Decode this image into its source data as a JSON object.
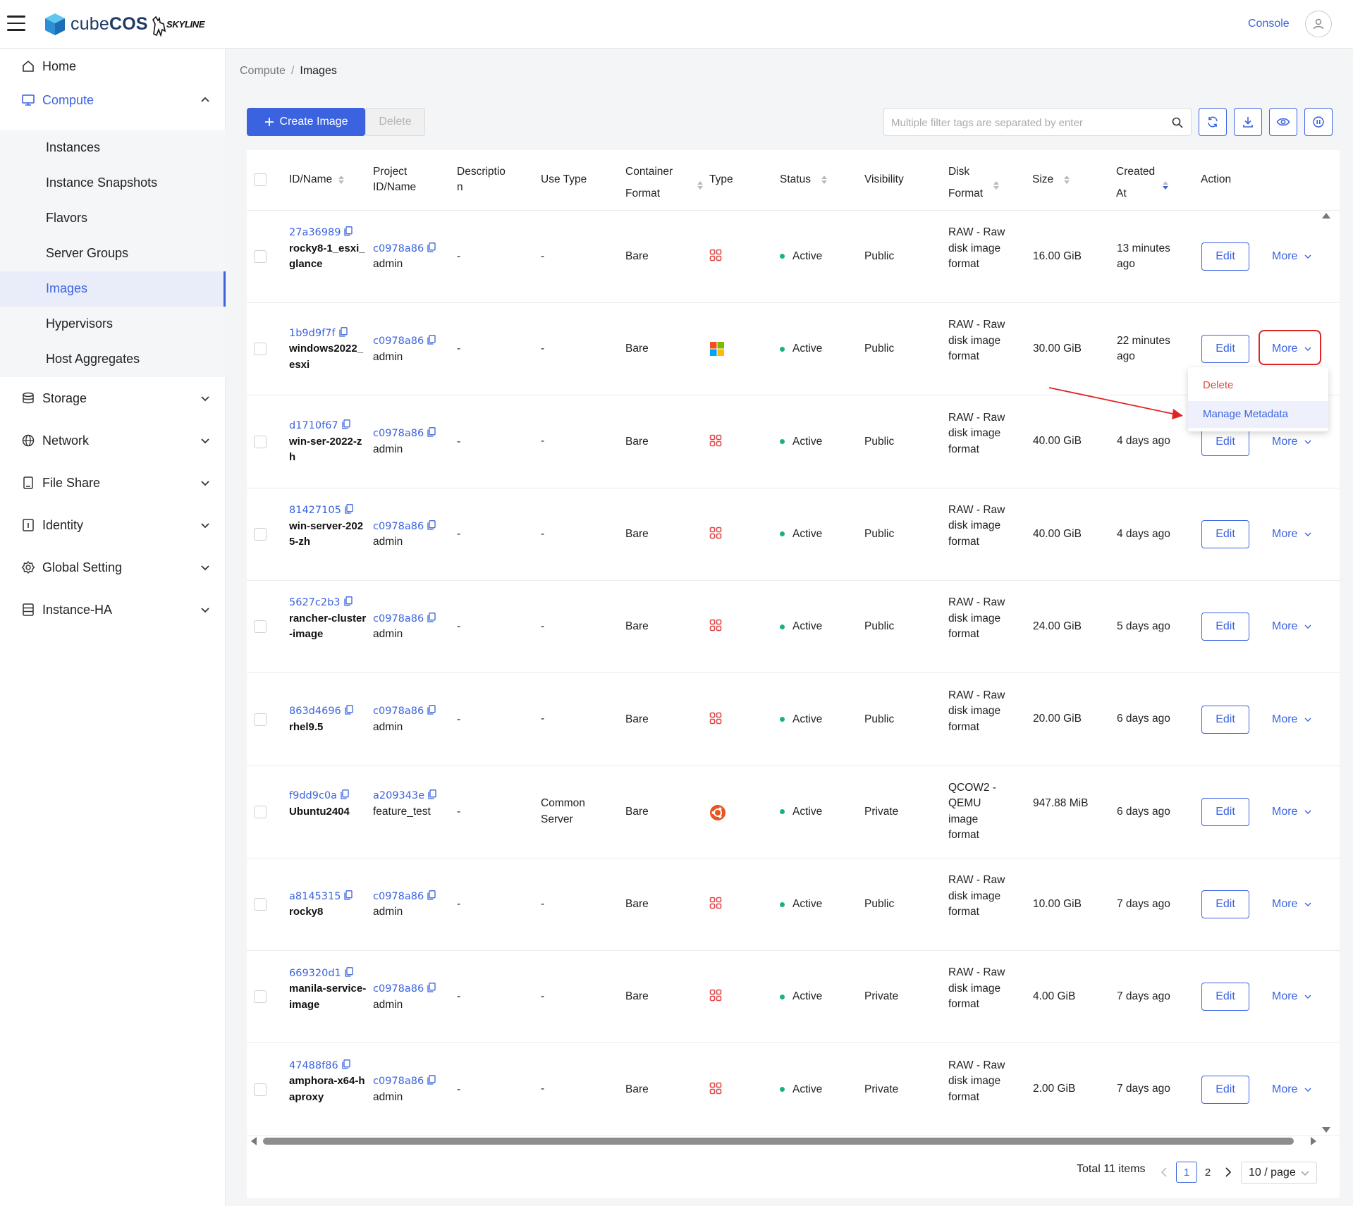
{
  "app": {
    "logo_text_light": "cube",
    "logo_text_bold": "COS",
    "partner": "SKYLINE",
    "console_link": "Console"
  },
  "sidebar": {
    "items": [
      {
        "label": "Home",
        "icon": "home-icon"
      },
      {
        "label": "Compute",
        "icon": "monitor-icon"
      },
      {
        "label": "Storage",
        "icon": "database-icon"
      },
      {
        "label": "Network",
        "icon": "globe-icon"
      },
      {
        "label": "File Share",
        "icon": "file-icon"
      },
      {
        "label": "Identity",
        "icon": "id-card-icon"
      },
      {
        "label": "Global Setting",
        "icon": "gear-icon"
      },
      {
        "label": "Instance-HA",
        "icon": "server-icon"
      }
    ],
    "compute_sub": [
      "Instances",
      "Instance Snapshots",
      "Flavors",
      "Server Groups",
      "Images",
      "Hypervisors",
      "Host Aggregates"
    ],
    "selected": "Images"
  },
  "breadcrumb": {
    "parent": "Compute",
    "sep": "/",
    "current": "Images"
  },
  "toolbar": {
    "create_label": "Create Image",
    "delete_label": "Delete",
    "search_placeholder": "Multiple filter tags are separated by enter"
  },
  "table": {
    "headers": {
      "id_name": "ID/Name",
      "project_a": "Project",
      "project_b": "ID/Name",
      "desc_a": "Descriptio",
      "desc_b": "n",
      "use_type": "Use Type",
      "cf_a": "Container",
      "cf_b": "Format",
      "type": "Type",
      "status": "Status",
      "visibility": "Visibility",
      "df_a": "Disk",
      "df_b": "Format",
      "size": "Size",
      "ca_a": "Created",
      "ca_b": "At",
      "action": "Action"
    },
    "rows": [
      {
        "id": "27a36989",
        "name": "rocky8-1_esxi_glance",
        "project_id": "c0978a86",
        "project_name": "admin",
        "description": "-",
        "use_type": "-",
        "container_format": "Bare",
        "os": "generic",
        "status": "Active",
        "visibility": "Public",
        "disk_format": "RAW - Raw disk image format",
        "size": "16.00 GiB",
        "created": "13 minutes ago"
      },
      {
        "id": "1b9d9f7f",
        "name": "windows2022_esxi",
        "project_id": "c0978a86",
        "project_name": "admin",
        "description": "-",
        "use_type": "-",
        "container_format": "Bare",
        "os": "windows",
        "status": "Active",
        "visibility": "Public",
        "disk_format": "RAW - Raw disk image format",
        "size": "30.00 GiB",
        "created": "22 minutes ago"
      },
      {
        "id": "d1710f67",
        "name": "win-ser-2022-zh",
        "project_id": "c0978a86",
        "project_name": "admin",
        "description": "-",
        "use_type": "-",
        "container_format": "Bare",
        "os": "generic",
        "status": "Active",
        "visibility": "Public",
        "disk_format": "RAW - Raw disk image format",
        "size": "40.00 GiB",
        "created": "4 days ago"
      },
      {
        "id": "81427105",
        "name": "win-server-2025-zh",
        "project_id": "c0978a86",
        "project_name": "admin",
        "description": "-",
        "use_type": "-",
        "container_format": "Bare",
        "os": "generic",
        "status": "Active",
        "visibility": "Public",
        "disk_format": "RAW - Raw disk image format",
        "size": "40.00 GiB",
        "created": "4 days ago"
      },
      {
        "id": "5627c2b3",
        "name": "rancher-cluster-image",
        "project_id": "c0978a86",
        "project_name": "admin",
        "description": "-",
        "use_type": "-",
        "container_format": "Bare",
        "os": "generic",
        "status": "Active",
        "visibility": "Public",
        "disk_format": "RAW - Raw disk image format",
        "size": "24.00 GiB",
        "created": "5 days ago"
      },
      {
        "id": "863d4696",
        "name": "rhel9.5",
        "project_id": "c0978a86",
        "project_name": "admin",
        "description": "-",
        "use_type": "-",
        "container_format": "Bare",
        "os": "generic",
        "status": "Active",
        "visibility": "Public",
        "disk_format": "RAW - Raw disk image format",
        "size": "20.00 GiB",
        "created": "6 days ago"
      },
      {
        "id": "f9dd9c0a",
        "name": "Ubuntu2404",
        "project_id": "a209343e",
        "project_name": "feature_test",
        "description": "-",
        "use_type": "Common Server",
        "container_format": "Bare",
        "os": "ubuntu",
        "status": "Active",
        "visibility": "Private",
        "disk_format": "QCOW2 - QEMU image format",
        "size": "947.88 MiB",
        "created": "6 days ago"
      },
      {
        "id": "a8145315",
        "name": "rocky8",
        "project_id": "c0978a86",
        "project_name": "admin",
        "description": "-",
        "use_type": "-",
        "container_format": "Bare",
        "os": "generic",
        "status": "Active",
        "visibility": "Public",
        "disk_format": "RAW - Raw disk image format",
        "size": "10.00 GiB",
        "created": "7 days ago"
      },
      {
        "id": "669320d1",
        "name": "manila-service-image",
        "project_id": "c0978a86",
        "project_name": "admin",
        "description": "-",
        "use_type": "-",
        "container_format": "Bare",
        "os": "generic",
        "status": "Active",
        "visibility": "Private",
        "disk_format": "RAW - Raw disk image format",
        "size": "4.00 GiB",
        "created": "7 days ago"
      },
      {
        "id": "47488f86",
        "name": "amphora-x64-haproxy",
        "project_id": "c0978a86",
        "project_name": "admin",
        "description": "-",
        "use_type": "-",
        "container_format": "Bare",
        "os": "generic",
        "status": "Active",
        "visibility": "Private",
        "disk_format": "RAW - Raw disk image format",
        "size": "2.00 GiB",
        "created": "7 days ago"
      }
    ],
    "edit_label": "Edit",
    "more_label": "More"
  },
  "dropdown": {
    "delete": "Delete",
    "manage_metadata": "Manage Metadata"
  },
  "pagination": {
    "total": "Total 11 items",
    "page1": "1",
    "page2": "2",
    "page_size": "10 / page"
  },
  "colors": {
    "accent": "#3b63e0",
    "danger": "#e0483f",
    "active": "#19b37a",
    "highlight": "#e02424"
  }
}
